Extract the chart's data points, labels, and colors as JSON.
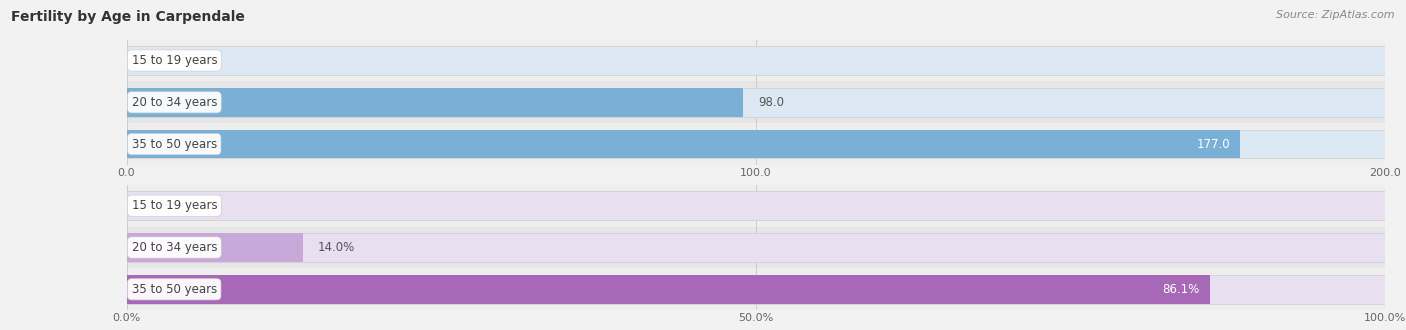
{
  "title": "Fertility by Age in Carpendale",
  "source": "Source: ZipAtlas.com",
  "top_chart": {
    "categories": [
      "15 to 19 years",
      "20 to 34 years",
      "35 to 50 years"
    ],
    "values": [
      0.0,
      98.0,
      177.0
    ],
    "xlim": [
      0,
      200
    ],
    "xticks": [
      0.0,
      100.0,
      200.0
    ],
    "bar_color": "#7aafd6",
    "bar_bg_color": "#dce8f4",
    "row_bg_even": "#eeeeee",
    "row_bg_odd": "#e6e6e6",
    "label_inside_color": "#ffffff",
    "label_outside_color": "#555555",
    "label_threshold": 150,
    "is_percent": false
  },
  "bottom_chart": {
    "categories": [
      "15 to 19 years",
      "20 to 34 years",
      "35 to 50 years"
    ],
    "values": [
      0.0,
      14.0,
      86.1
    ],
    "xlim": [
      0,
      100
    ],
    "xticks": [
      0.0,
      50.0,
      100.0
    ],
    "xtick_labels": [
      "0.0%",
      "50.0%",
      "100.0%"
    ],
    "bar_colors": [
      "#c8a8d8",
      "#c8a8d8",
      "#a868b8"
    ],
    "bar_bg_color": "#e8dff0",
    "row_bg_even": "#eeeeee",
    "row_bg_odd": "#e6e6e6",
    "label_inside_color": "#ffffff",
    "label_outside_color": "#555555",
    "label_threshold": 80,
    "is_percent": true
  },
  "category_label_color": "#444444",
  "category_label_fontsize": 8.5,
  "value_label_fontsize": 8.5,
  "tick_fontsize": 8,
  "title_fontsize": 10,
  "source_fontsize": 8,
  "fig_bg_color": "#f2f2f2",
  "bar_height": 0.68
}
